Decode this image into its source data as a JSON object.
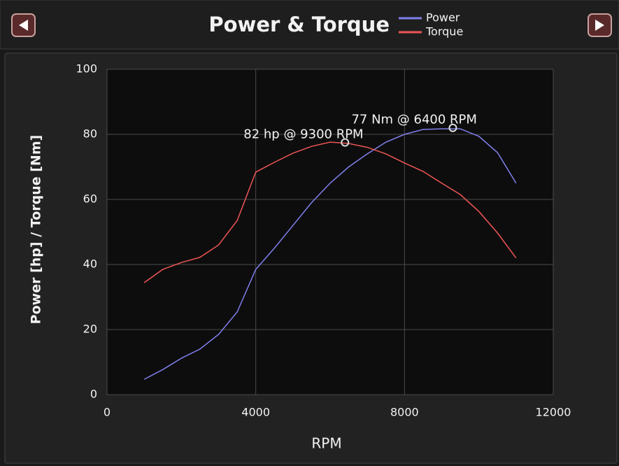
{
  "chart_data": {
    "type": "line",
    "title": "Power & Torque",
    "x_label": "RPM",
    "y_label": "Power [hp] / Torque [Nm]",
    "x": [
      1000,
      1500,
      2000,
      2500,
      3000,
      3500,
      4000,
      4500,
      5000,
      5500,
      6000,
      6500,
      7000,
      7500,
      8000,
      8500,
      9000,
      9500,
      10000,
      10500,
      11000
    ],
    "series": [
      {
        "name": "Power",
        "color": "#8080ee",
        "values": [
          4.7,
          7.7,
          11.2,
          14,
          18.5,
          25.4,
          38.5,
          45,
          52,
          59,
          65,
          70,
          74,
          77.6,
          80,
          81.5,
          81.7,
          81.7,
          79.4,
          74.4,
          65
        ]
      },
      {
        "name": "Torque",
        "color": "#ee5555",
        "values": [
          34.4,
          38.5,
          40.6,
          42.2,
          46,
          53.5,
          68.4,
          71.4,
          74.2,
          76.3,
          77.6,
          77.2,
          76,
          74,
          71.2,
          68.6,
          65,
          61.5,
          56.3,
          49.7,
          42
        ]
      }
    ],
    "annotations": [
      {
        "text": "77 Nm @ 6400 RPM",
        "x": 9300,
        "y": 82
      },
      {
        "text": "82 hp @ 9300 RPM",
        "x": 6400,
        "y": 77.5
      }
    ],
    "xlim": [
      0,
      12000
    ],
    "ylim": [
      0,
      100
    ],
    "xticks": [
      0,
      4000,
      8000,
      12000
    ],
    "yticks": [
      0,
      20,
      40,
      60,
      80,
      100
    ],
    "grid": true
  }
}
